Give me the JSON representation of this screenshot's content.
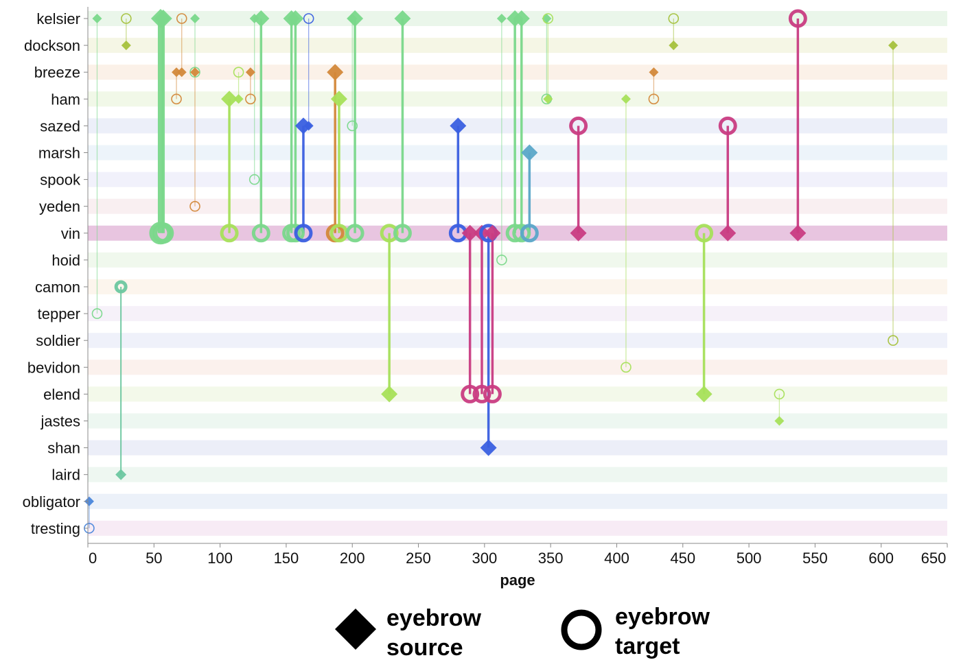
{
  "chart_data": {
    "type": "scatter",
    "subtype": "dumbbell-timeline",
    "xlabel": "page",
    "xlim": [
      0,
      650
    ],
    "xticks": [
      0,
      50,
      100,
      150,
      200,
      250,
      300,
      350,
      400,
      450,
      500,
      550,
      600,
      650
    ],
    "characters": [
      "kelsier",
      "dockson",
      "breeze",
      "ham",
      "sazed",
      "marsh",
      "spook",
      "yeden",
      "vin",
      "hoid",
      "camon",
      "tepper",
      "soldier",
      "bevidon",
      "elend",
      "jastes",
      "shan",
      "laird",
      "obligator",
      "tresting"
    ],
    "highlight_character": "vin",
    "row_tints": [
      "#e6f5e6",
      "#f3f5e0",
      "#faeee4",
      "#eef7e4",
      "#e9ecf8",
      "#eaf2f9",
      "#efeefa",
      "#f8ecef",
      "#e8c5e0",
      "#edf7ea",
      "#fbf3ea",
      "#f4eef8",
      "#eceef9",
      "#faefea",
      "#f1f8e6",
      "#eaf6ee",
      "#e9ebf7",
      "#ebf6ee",
      "#e9eef8",
      "#f6e8f3"
    ],
    "colors": {
      "mint": "#7ad88b",
      "lime": "#a6e05a",
      "olive": "#a5c13c",
      "orange": "#d3883a",
      "blue": "#3a5fe0",
      "teal": "#5aa6c8",
      "magenta": "#c93c82",
      "seafoam": "#6cc7a0",
      "lightblue": "#4a86db"
    },
    "links": [
      {
        "page": 55,
        "source": "kelsier",
        "target": "vin",
        "weight": 5,
        "color": "mint"
      },
      {
        "page": 57,
        "source": "kelsier",
        "target": "vin",
        "weight": 4,
        "color": "mint"
      },
      {
        "page": 107,
        "source": "ham",
        "target": "vin",
        "weight": 3,
        "color": "lime"
      },
      {
        "page": 131,
        "source": "kelsier",
        "target": "vin",
        "weight": 3,
        "color": "mint"
      },
      {
        "page": 154,
        "source": "kelsier",
        "target": "vin",
        "weight": 3,
        "color": "mint"
      },
      {
        "page": 157,
        "source": "kelsier",
        "target": "vin",
        "weight": 3,
        "color": "mint"
      },
      {
        "page": 163,
        "source": "sazed",
        "target": "vin",
        "weight": 3,
        "color": "blue"
      },
      {
        "page": 187,
        "source": "breeze",
        "target": "vin",
        "weight": 3,
        "color": "orange"
      },
      {
        "page": 190,
        "source": "ham",
        "target": "vin",
        "weight": 3,
        "color": "lime"
      },
      {
        "page": 202,
        "source": "kelsier",
        "target": "vin",
        "weight": 3,
        "color": "mint"
      },
      {
        "page": 228,
        "source": "elend",
        "target": "vin",
        "weight": 3,
        "color": "lime"
      },
      {
        "page": 238,
        "source": "kelsier",
        "target": "vin",
        "weight": 3,
        "color": "mint"
      },
      {
        "page": 280,
        "source": "sazed",
        "target": "vin",
        "weight": 3,
        "color": "blue"
      },
      {
        "page": 289,
        "source": "vin",
        "target": "elend",
        "weight": 3,
        "color": "magenta"
      },
      {
        "page": 298,
        "source": "vin",
        "target": "elend",
        "weight": 3,
        "color": "magenta"
      },
      {
        "page": 303,
        "source": "shan",
        "target": "vin",
        "weight": 3,
        "color": "blue"
      },
      {
        "page": 306,
        "source": "vin",
        "target": "elend",
        "weight": 3,
        "color": "magenta"
      },
      {
        "page": 323,
        "source": "kelsier",
        "target": "vin",
        "weight": 3,
        "color": "mint"
      },
      {
        "page": 328,
        "source": "kelsier",
        "target": "vin",
        "weight": 3,
        "color": "mint"
      },
      {
        "page": 334,
        "source": "marsh",
        "target": "vin",
        "weight": 3,
        "color": "teal"
      },
      {
        "page": 371,
        "source": "vin",
        "target": "sazed",
        "weight": 3,
        "color": "magenta"
      },
      {
        "page": 466,
        "source": "elend",
        "target": "vin",
        "weight": 3,
        "color": "lime"
      },
      {
        "page": 484,
        "source": "vin",
        "target": "sazed",
        "weight": 3,
        "color": "magenta"
      },
      {
        "page": 537,
        "source": "vin",
        "target": "kelsier",
        "weight": 3,
        "color": "magenta"
      },
      {
        "page": 7,
        "source": "kelsier",
        "target": "tepper",
        "weight": 1,
        "color": "mint"
      },
      {
        "page": 29,
        "source": "dockson",
        "target": "kelsier",
        "weight": 1,
        "color": "olive"
      },
      {
        "page": 25,
        "source": "laird",
        "target": "camon",
        "weight": 2,
        "color": "seafoam"
      },
      {
        "page": 71,
        "source": "breeze",
        "target": "kelsier",
        "weight": 1,
        "color": "orange"
      },
      {
        "page": 67,
        "source": "breeze",
        "target": "ham",
        "weight": 1,
        "color": "orange"
      },
      {
        "page": 81,
        "source": "kelsier",
        "target": "breeze",
        "weight": 1,
        "color": "mint"
      },
      {
        "page": 81,
        "source": "breeze",
        "target": "yeden",
        "weight": 1,
        "color": "orange"
      },
      {
        "page": 114,
        "source": "ham",
        "target": "breeze",
        "weight": 1,
        "color": "lime"
      },
      {
        "page": 123,
        "source": "breeze",
        "target": "ham",
        "weight": 1,
        "color": "orange"
      },
      {
        "page": 126,
        "source": "kelsier",
        "target": "spook",
        "weight": 1,
        "color": "mint"
      },
      {
        "page": 167,
        "source": "sazed",
        "target": "kelsier",
        "weight": 1,
        "color": "blue"
      },
      {
        "page": 200,
        "source": "kelsier",
        "target": "sazed",
        "weight": 1,
        "color": "mint"
      },
      {
        "page": 313,
        "source": "kelsier",
        "target": "hoid",
        "weight": 1,
        "color": "mint"
      },
      {
        "page": 347,
        "source": "kelsier",
        "target": "ham",
        "weight": 1,
        "color": "mint"
      },
      {
        "page": 348,
        "source": "ham",
        "target": "kelsier",
        "weight": 1,
        "color": "lime"
      },
      {
        "page": 407,
        "source": "ham",
        "target": "bevidon",
        "weight": 1,
        "color": "lime"
      },
      {
        "page": 428,
        "source": "breeze",
        "target": "ham",
        "weight": 1,
        "color": "orange"
      },
      {
        "page": 443,
        "source": "dockson",
        "target": "kelsier",
        "weight": 1,
        "color": "olive"
      },
      {
        "page": 523,
        "source": "jastes",
        "target": "elend",
        "weight": 1,
        "color": "lime"
      },
      {
        "page": 609,
        "source": "dockson",
        "target": "soldier",
        "weight": 1,
        "color": "olive"
      },
      {
        "page": 1,
        "source": "obligator",
        "target": "tresting",
        "weight": 1,
        "color": "lightblue"
      }
    ],
    "legend": [
      {
        "marker": "diamond",
        "line1": "eyebrow",
        "line2": "source"
      },
      {
        "marker": "circle",
        "line1": "eyebrow",
        "line2": "target"
      }
    ]
  }
}
